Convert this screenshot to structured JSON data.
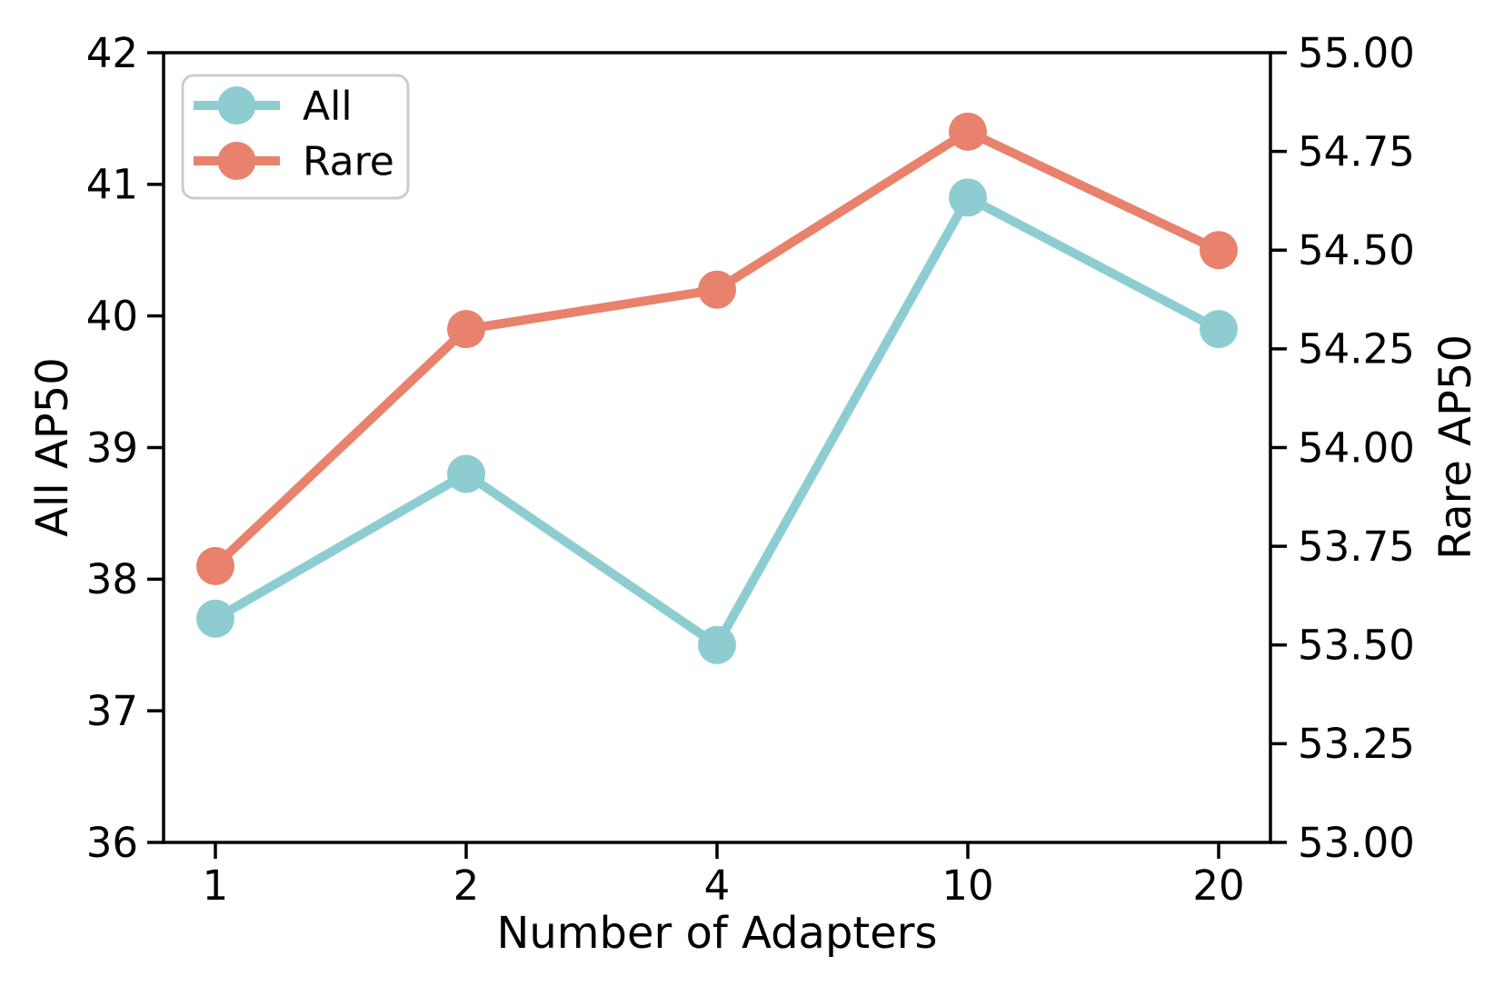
{
  "chart_data": {
    "type": "line",
    "title": "",
    "xlabel": "Number of Adapters",
    "categories": [
      "1",
      "2",
      "4",
      "10",
      "20"
    ],
    "left_axis": {
      "label": "All AP50",
      "min": 36,
      "max": 42,
      "ticks": [
        "36",
        "37",
        "38",
        "39",
        "40",
        "41",
        "42"
      ],
      "tick_values": [
        36,
        37,
        38,
        39,
        40,
        41,
        42
      ]
    },
    "right_axis": {
      "label": "Rare AP50",
      "min": 53.0,
      "max": 55.0,
      "ticks": [
        "53.00",
        "53.25",
        "53.50",
        "53.75",
        "54.00",
        "54.25",
        "54.50",
        "54.75",
        "55.00"
      ],
      "tick_values": [
        53.0,
        53.25,
        53.5,
        53.75,
        54.0,
        54.25,
        54.5,
        54.75,
        55.0
      ]
    },
    "series": [
      {
        "name": "All",
        "axis": "left",
        "color": "#8dcdd2",
        "values": [
          37.7,
          38.8,
          37.5,
          40.9,
          39.9
        ]
      },
      {
        "name": "Rare",
        "axis": "right",
        "color": "#e8826d",
        "values": [
          53.7,
          54.3,
          54.4,
          54.8,
          54.5
        ]
      }
    ],
    "legend": {
      "position": "upper-left",
      "entries": [
        "All",
        "Rare"
      ]
    },
    "grid": false,
    "colors": {
      "background": "#ffffff",
      "spine": "#000000",
      "text": "#000000",
      "legend_border": "#cccccc"
    }
  }
}
